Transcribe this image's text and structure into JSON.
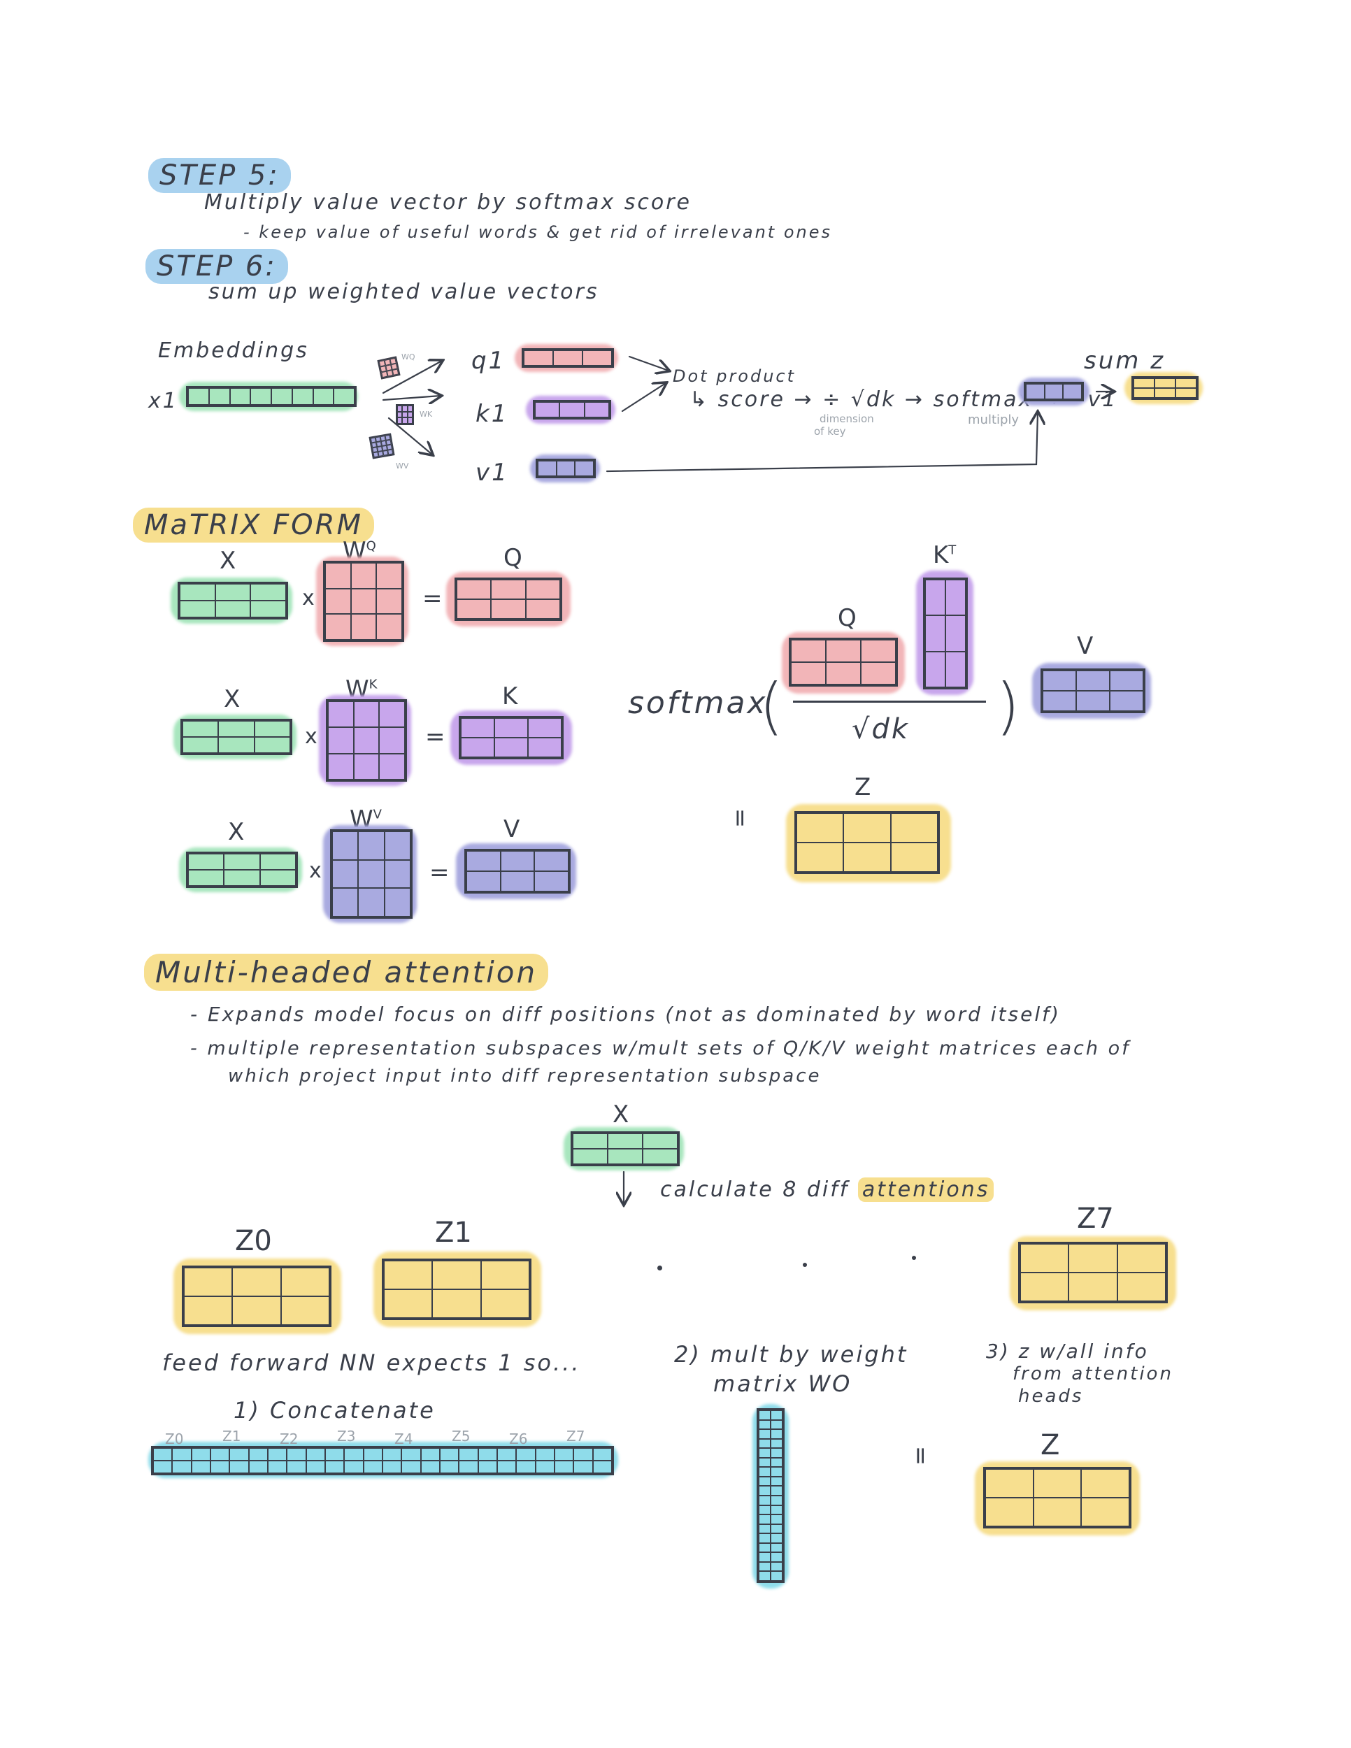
{
  "step5": {
    "title": "STEP 5:",
    "line1": "Multiply value vector by softmax score",
    "line2": "- keep value of useful words & get rid of irrelevant ones"
  },
  "step6": {
    "title": "STEP 6:",
    "line1": "sum up weighted value vectors"
  },
  "flow": {
    "embeddings": "Embeddings",
    "x1": "x1",
    "q1": "q1",
    "k1": "k1",
    "v1": "v1",
    "wq": "WQ",
    "wk": "WK",
    "wv": "WV",
    "dot_product": "Dot product",
    "score": "↳ score → ÷ √dk → softmax → · v1",
    "dimension": "dimension",
    "of_key": "of key",
    "multiply": "multiply",
    "sum": "sum z"
  },
  "matrix_form": {
    "title": "MaTRIX FORM",
    "x": "X",
    "wq": "W",
    "wq_sup": "Q",
    "q": "Q",
    "wk": "W",
    "wk_sup": "K",
    "k": "K",
    "wv": "W",
    "wv_sup": "V",
    "v": "V",
    "times": "x",
    "equals": "=",
    "softmax": "softmax",
    "kt": "K",
    "kt_sup": "T",
    "sqrt_dk": "√dk",
    "z": "Z"
  },
  "multi_head": {
    "title": "Multi-headed attention",
    "bullet1": "- Expands model focus on diff positions (not as dominated by word itself)",
    "bullet2": "- multiple representation subspaces w/mult sets of Q/K/V weight matrices each of",
    "bullet2b": "which project input into diff representation subspace",
    "x": "X",
    "calc": "calculate 8 diff",
    "attentions": "attentions",
    "z0": "Z0",
    "z1": "Z1",
    "z7": "Z7",
    "ffnn": "feed forward NN expects 1 so...",
    "step1": "1) Concatenate",
    "step2a": "2) mult by weight",
    "step2b": "matrix  WO",
    "step3a": "3) z w/all info",
    "step3b": "from attention",
    "step3c": "heads",
    "concat_labels": [
      "Z0",
      "Z1",
      "Z2",
      "Z3",
      "Z4",
      "Z5",
      "Z6",
      "Z7"
    ],
    "equals": "=",
    "z": "Z"
  },
  "colors": {
    "green": "#a8e6be",
    "pink": "#f2b5b8",
    "purple": "#c8a6ec",
    "indigo": "#a9aae0",
    "yellow": "#f7df8f",
    "cyan": "#8fdcea",
    "blue_hl": "#a9d2ef",
    "ink": "#3a3f4a"
  }
}
